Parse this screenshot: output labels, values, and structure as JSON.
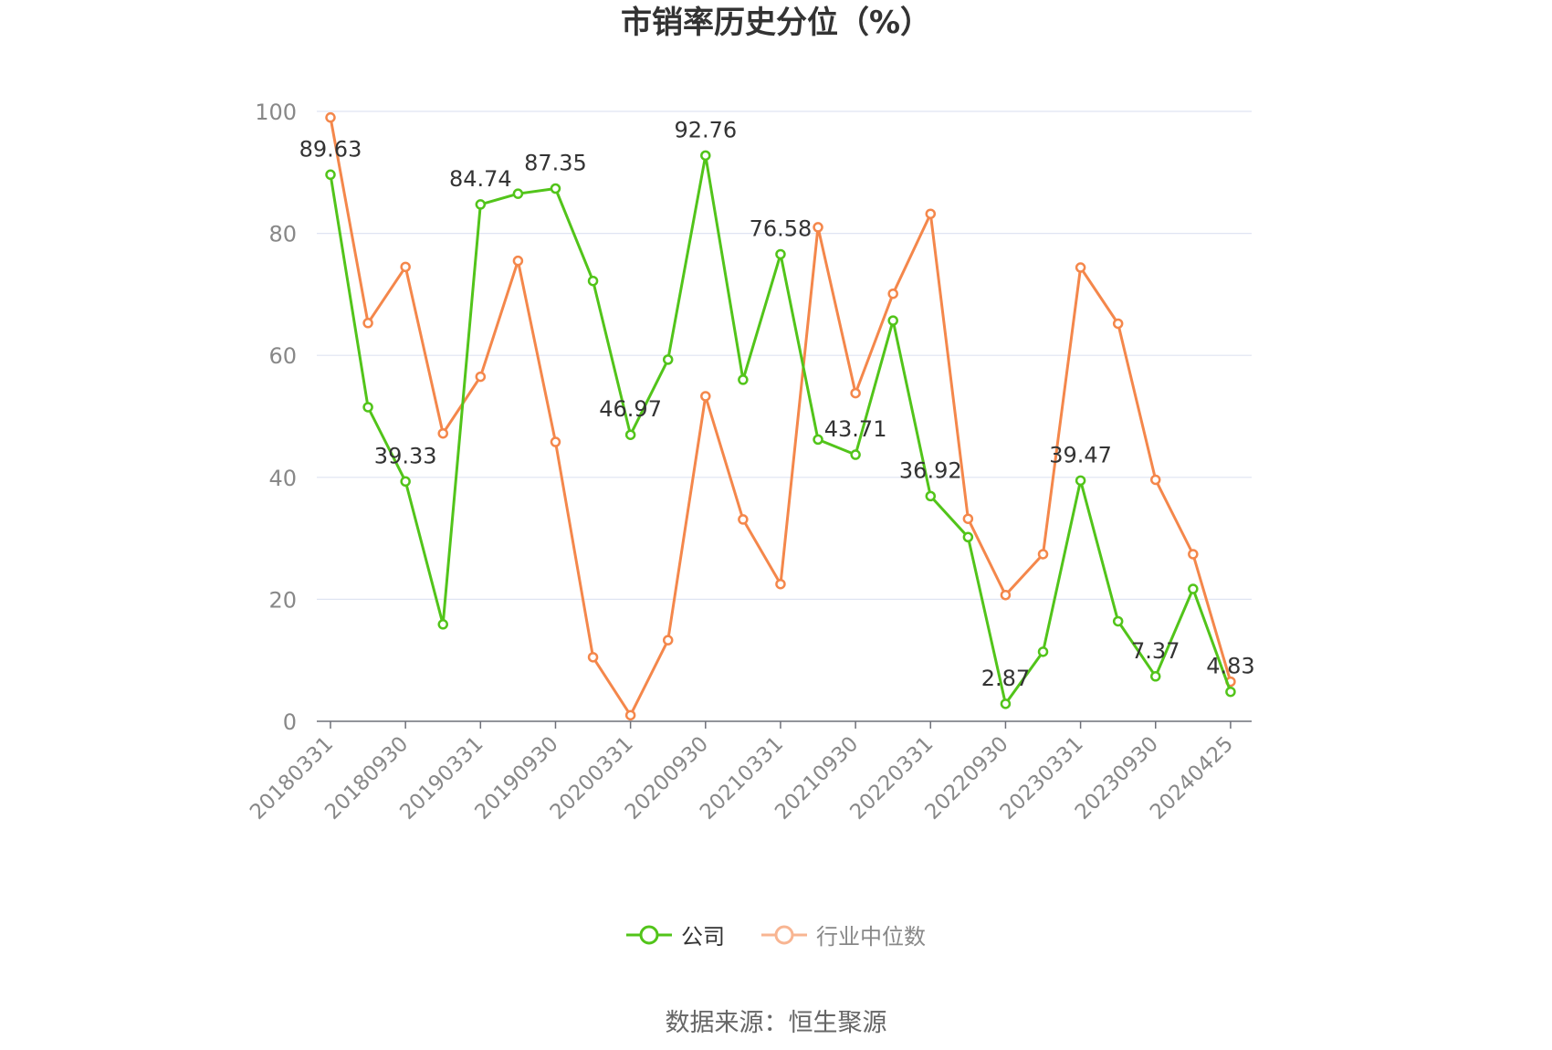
{
  "chart_data": {
    "type": "line",
    "title": "市销率历史分位（%）",
    "source": "数据来源：恒生聚源",
    "ylim": [
      0,
      100
    ],
    "y_ticks": [
      0,
      20,
      40,
      60,
      80,
      100
    ],
    "x_tick_labels": [
      "20180331",
      "20180930",
      "20190331",
      "20190930",
      "20200331",
      "20200930",
      "20210331",
      "20210930",
      "20220331",
      "20220930",
      "20230331",
      "20230930",
      "20240425"
    ],
    "x_tick_indices": [
      0,
      2,
      4,
      6,
      8,
      10,
      12,
      14,
      16,
      18,
      20,
      22,
      24
    ],
    "legend_position": "bottom",
    "grid": true,
    "series": [
      {
        "name": "公司",
        "color": "#52c41a",
        "values": [
          89.63,
          51.5,
          39.33,
          15.9,
          84.74,
          86.5,
          87.35,
          72.2,
          46.97,
          59.3,
          92.76,
          56.0,
          76.58,
          46.2,
          43.71,
          65.7,
          36.92,
          30.2,
          2.87,
          11.4,
          39.47,
          16.4,
          7.37,
          21.7,
          4.83
        ],
        "labels": {
          "0": "89.63",
          "2": "39.33",
          "4": "84.74",
          "6": "87.35",
          "8": "46.97",
          "10": "92.76",
          "12": "76.58",
          "14": "43.71",
          "16": "36.92",
          "18": "2.87",
          "20": "39.47",
          "22": "7.37",
          "24": "4.83"
        }
      },
      {
        "name": "行业中位数",
        "color": "#f4874b",
        "values": [
          99.0,
          65.3,
          74.5,
          47.2,
          56.5,
          75.5,
          45.8,
          10.5,
          1.0,
          13.3,
          53.3,
          33.1,
          22.5,
          81.0,
          53.8,
          70.1,
          83.2,
          33.2,
          20.7,
          27.4,
          74.4,
          65.2,
          39.6,
          27.4,
          6.5
        ]
      }
    ]
  }
}
